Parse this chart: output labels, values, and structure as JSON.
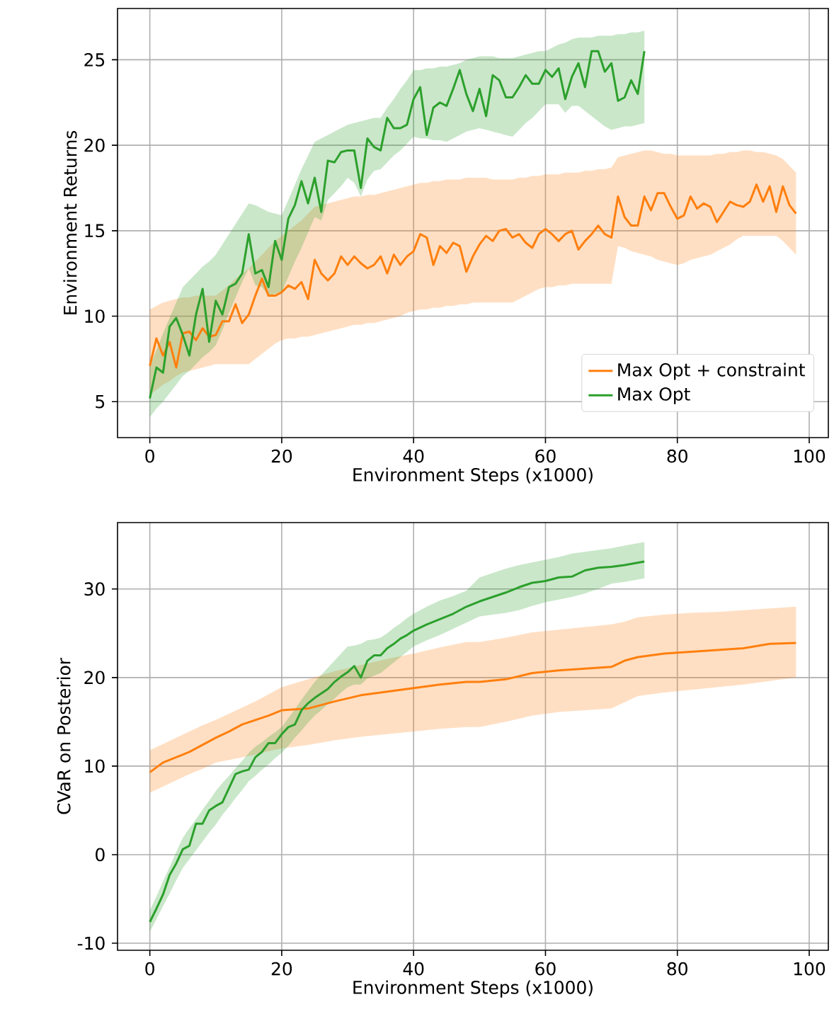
{
  "chart_data": [
    {
      "type": "line",
      "xlabel": "Environment Steps (x1000)",
      "ylabel": "Environment Returns",
      "xlim": [
        -4.9,
        102.9
      ],
      "ylim": [
        2.9,
        28
      ],
      "xticks": [
        0,
        20,
        40,
        60,
        80,
        100
      ],
      "yticks": [
        5,
        10,
        15,
        20,
        25
      ],
      "grid": true,
      "legend": "bottom right",
      "series": [
        {
          "name": "Max Opt + constraint",
          "color": "#ff7f0e",
          "x": [
            0,
            1,
            2,
            3,
            4,
            5,
            6,
            7,
            8,
            9,
            10,
            11,
            12,
            13,
            14,
            15,
            16,
            17,
            18,
            19,
            20,
            21,
            22,
            23,
            24,
            25,
            26,
            27,
            28,
            29,
            30,
            31,
            32,
            33,
            34,
            35,
            36,
            37,
            38,
            39,
            40,
            41,
            42,
            43,
            44,
            45,
            46,
            47,
            48,
            49,
            50,
            51,
            52,
            53,
            54,
            55,
            56,
            57,
            58,
            59,
            60,
            61,
            62,
            63,
            64,
            65,
            66,
            67,
            68,
            69,
            70,
            71,
            72,
            73,
            74,
            75,
            76,
            77,
            78,
            79,
            80,
            81,
            82,
            83,
            84,
            85,
            86,
            87,
            88,
            89,
            90,
            91,
            92,
            93,
            94,
            95,
            96,
            97,
            98
          ],
          "values": [
            7.1,
            8.7,
            7.7,
            8.5,
            7.0,
            9.0,
            9.1,
            8.6,
            9.3,
            8.8,
            8.9,
            9.7,
            9.7,
            10.7,
            9.6,
            10.1,
            11.2,
            12.2,
            11.2,
            11.2,
            11.4,
            11.8,
            11.6,
            12.0,
            11.0,
            13.3,
            12.5,
            12.1,
            12.5,
            13.5,
            13.0,
            13.5,
            13.1,
            12.8,
            13.0,
            13.5,
            12.5,
            13.6,
            13.0,
            13.5,
            13.8,
            14.8,
            14.6,
            13.0,
            14.1,
            13.7,
            14.3,
            14.1,
            12.6,
            13.5,
            14.2,
            14.7,
            14.4,
            15.0,
            15.1,
            14.6,
            14.8,
            14.3,
            14.0,
            14.8,
            15.1,
            14.8,
            14.4,
            14.8,
            15.0,
            13.9,
            14.4,
            14.8,
            15.3,
            14.8,
            14.6,
            17.0,
            15.8,
            15.3,
            15.3,
            17.0,
            16.2,
            17.2,
            17.2,
            16.4,
            15.7,
            15.9,
            17.0,
            16.3,
            16.6,
            16.4,
            15.5,
            16.1,
            16.7,
            16.5,
            16.4,
            16.7,
            17.7,
            16.7,
            17.6,
            16.1,
            17.6,
            16.5,
            16.0
          ],
          "upper": [
            10.4,
            10.6,
            10.8,
            10.9,
            11.0,
            11.1,
            11.1,
            11.2,
            11.2,
            11.2,
            11.2,
            11.5,
            11.8,
            12.2,
            12.5,
            12.8,
            13.2,
            13.6,
            14.0,
            14.4,
            14.7,
            15.0,
            15.3,
            15.6,
            16.0,
            16.4,
            16.5,
            16.6,
            16.7,
            16.8,
            16.9,
            17.0,
            17.0,
            17.1,
            17.1,
            17.2,
            17.3,
            17.4,
            17.5,
            17.6,
            17.7,
            17.8,
            17.8,
            17.9,
            17.9,
            18.0,
            18.0,
            18.0,
            18.1,
            18.1,
            18.1,
            18.1,
            18.0,
            18.0,
            18.0,
            18.0,
            18.1,
            18.1,
            18.2,
            18.2,
            18.3,
            18.3,
            18.3,
            18.4,
            18.4,
            18.4,
            18.5,
            18.5,
            18.6,
            18.6,
            18.7,
            19.3,
            19.4,
            19.5,
            19.6,
            19.7,
            19.7,
            19.6,
            19.5,
            19.5,
            19.4,
            19.4,
            19.4,
            19.4,
            19.4,
            19.4,
            19.5,
            19.5,
            19.6,
            19.6,
            19.7,
            19.7,
            19.6,
            19.6,
            19.5,
            19.4,
            19.2,
            18.8,
            18.4
          ],
          "lower": [
            5.4,
            5.7,
            6.0,
            6.2,
            6.5,
            6.7,
            6.8,
            6.9,
            7.0,
            7.1,
            7.2,
            7.2,
            7.2,
            7.2,
            7.2,
            7.2,
            7.5,
            7.8,
            8.1,
            8.4,
            8.6,
            8.7,
            8.7,
            8.8,
            8.8,
            8.9,
            9.0,
            9.1,
            9.2,
            9.3,
            9.4,
            9.5,
            9.5,
            9.6,
            9.6,
            9.7,
            9.8,
            9.9,
            10.0,
            10.2,
            10.3,
            10.4,
            10.4,
            10.5,
            10.5,
            10.6,
            10.6,
            10.7,
            10.7,
            10.8,
            10.8,
            10.8,
            10.8,
            10.8,
            10.8,
            10.8,
            11.0,
            11.2,
            11.4,
            11.6,
            11.7,
            11.7,
            11.8,
            11.8,
            11.9,
            11.9,
            11.9,
            11.9,
            11.9,
            11.9,
            11.9,
            14.1,
            14.0,
            13.8,
            13.7,
            13.6,
            13.5,
            13.3,
            13.2,
            13.1,
            13.0,
            13.1,
            13.3,
            13.4,
            13.5,
            13.6,
            13.8,
            14.0,
            14.2,
            14.5,
            14.7,
            14.7,
            14.7,
            14.7,
            14.7,
            14.7,
            14.4,
            14.0,
            13.6
          ]
        },
        {
          "name": "Max Opt",
          "color": "#2ca02c",
          "x": [
            0,
            1,
            2,
            3,
            4,
            5,
            6,
            7,
            8,
            9,
            10,
            11,
            12,
            13,
            14,
            15,
            16,
            17,
            18,
            19,
            20,
            21,
            22,
            23,
            24,
            25,
            26,
            27,
            28,
            29,
            30,
            31,
            32,
            33,
            34,
            35,
            36,
            37,
            38,
            39,
            40,
            41,
            42,
            43,
            44,
            45,
            46,
            47,
            48,
            49,
            50,
            51,
            52,
            53,
            54,
            55,
            56,
            57,
            58,
            59,
            60,
            61,
            62,
            63,
            64,
            65,
            66,
            67,
            68,
            69,
            70,
            71,
            72,
            73,
            74,
            75
          ],
          "values": [
            5.2,
            7.0,
            6.7,
            9.4,
            9.9,
            8.9,
            7.7,
            10.1,
            11.6,
            8.5,
            10.9,
            10.1,
            11.7,
            11.9,
            12.5,
            14.8,
            12.5,
            12.7,
            11.7,
            14.4,
            13.3,
            15.7,
            16.5,
            17.9,
            16.6,
            18.1,
            16.1,
            19.1,
            19.0,
            19.6,
            19.7,
            19.7,
            17.5,
            20.4,
            19.9,
            19.7,
            21.6,
            21.0,
            21.0,
            21.2,
            22.7,
            23.4,
            20.6,
            22.2,
            22.5,
            22.3,
            23.3,
            24.4,
            23.0,
            22.0,
            23.3,
            21.7,
            24.1,
            23.8,
            22.8,
            22.8,
            23.4,
            24.1,
            23.6,
            23.6,
            24.4,
            24.0,
            24.5,
            22.7,
            24.0,
            24.8,
            23.4,
            25.5,
            25.5,
            24.3,
            24.8,
            22.6,
            22.8,
            23.8,
            23.0,
            25.5
          ],
          "upper": [
            7.1,
            8.0,
            9.0,
            9.9,
            10.8,
            11.7,
            12.1,
            12.5,
            12.9,
            13.2,
            13.6,
            14.2,
            14.8,
            15.4,
            16.0,
            16.6,
            16.5,
            16.3,
            16.1,
            16.0,
            15.9,
            16.8,
            17.7,
            18.6,
            19.4,
            20.2,
            20.4,
            20.6,
            20.8,
            21.0,
            21.2,
            21.3,
            21.4,
            21.5,
            21.6,
            21.6,
            22.2,
            22.7,
            23.3,
            23.8,
            24.4,
            24.4,
            24.5,
            24.5,
            24.6,
            24.6,
            24.7,
            24.8,
            25.0,
            25.1,
            25.2,
            25.2,
            25.2,
            25.1,
            25.1,
            25.1,
            25.2,
            25.3,
            25.4,
            25.5,
            25.5,
            25.7,
            25.9,
            26.0,
            26.2,
            26.3,
            26.3,
            26.3,
            26.4,
            26.4,
            26.4,
            26.5,
            26.5,
            26.6,
            26.6,
            26.7
          ],
          "lower": [
            4.1,
            4.6,
            5.0,
            5.5,
            6.0,
            6.5,
            6.8,
            7.2,
            7.6,
            7.9,
            8.3,
            9.2,
            10.2,
            11.1,
            12.0,
            12.8,
            11.8,
            11.7,
            11.2,
            11.3,
            11.4,
            12.3,
            13.2,
            14.0,
            14.9,
            15.8,
            15.6,
            16.8,
            17.2,
            17.6,
            18.1,
            17.8,
            17.0,
            18.0,
            18.5,
            18.6,
            19.0,
            19.4,
            19.7,
            20.1,
            20.5,
            20.4,
            20.4,
            20.3,
            20.3,
            20.2,
            20.4,
            20.6,
            20.8,
            20.9,
            21.0,
            20.9,
            20.8,
            20.7,
            20.6,
            20.5,
            20.9,
            21.3,
            21.6,
            22.0,
            22.4,
            22.4,
            22.4,
            21.9,
            22.3,
            22.3,
            22.0,
            21.7,
            21.4,
            21.1,
            20.9,
            21.0,
            21.1,
            21.1,
            21.2,
            21.3
          ]
        }
      ]
    },
    {
      "type": "line",
      "xlabel": "Environment Steps (x1000)",
      "ylabel": "CVaR on Posterior",
      "xlim": [
        -4.9,
        102.9
      ],
      "ylim": [
        -10.8,
        37.5
      ],
      "xticks": [
        0,
        20,
        40,
        60,
        80,
        100
      ],
      "yticks": [
        -10,
        0,
        10,
        20,
        30
      ],
      "grid": true,
      "series": [
        {
          "color": "#ff7f0e",
          "x": [
            0,
            2,
            4,
            6,
            8,
            10,
            12,
            14,
            16,
            18,
            20,
            24,
            28,
            32,
            36,
            40,
            44,
            48,
            50,
            54,
            58,
            62,
            66,
            70,
            72,
            74,
            78,
            82,
            86,
            90,
            94,
            98
          ],
          "values": [
            9.3,
            10.4,
            11.0,
            11.6,
            12.4,
            13.2,
            13.9,
            14.7,
            15.2,
            15.7,
            16.3,
            16.5,
            17.3,
            18.0,
            18.4,
            18.8,
            19.2,
            19.5,
            19.5,
            19.8,
            20.5,
            20.8,
            21.0,
            21.2,
            21.9,
            22.3,
            22.7,
            22.9,
            23.1,
            23.3,
            23.8,
            23.9
          ],
          "upper": [
            11.8,
            12.5,
            13.2,
            13.9,
            14.6,
            15.2,
            15.9,
            16.6,
            17.3,
            18.1,
            18.9,
            19.8,
            20.7,
            21.4,
            22.1,
            22.7,
            23.4,
            24.0,
            24.0,
            24.5,
            25.1,
            25.4,
            25.7,
            26.0,
            26.3,
            26.8,
            27.1,
            27.3,
            27.4,
            27.6,
            27.8,
            28.0
          ],
          "lower": [
            7.0,
            7.7,
            8.4,
            9.1,
            9.7,
            10.4,
            10.7,
            11.0,
            11.3,
            11.7,
            12.0,
            12.4,
            12.9,
            13.3,
            13.6,
            13.9,
            14.2,
            14.4,
            14.4,
            15.0,
            15.7,
            16.1,
            16.3,
            16.5,
            17.2,
            17.9,
            18.3,
            18.6,
            18.9,
            19.2,
            19.6,
            20.0
          ]
        },
        {
          "color": "#2ca02c",
          "x": [
            0,
            1,
            2,
            3,
            4,
            5,
            6,
            7,
            8,
            9,
            10,
            11,
            12,
            13,
            14,
            15,
            16,
            17,
            18,
            19,
            20,
            21,
            22,
            23,
            24,
            25,
            26,
            27,
            28,
            29,
            30,
            31,
            32,
            33,
            34,
            35,
            36,
            37,
            38,
            39,
            40,
            42,
            44,
            46,
            48,
            50,
            52,
            54,
            56,
            58,
            60,
            62,
            64,
            66,
            68,
            70,
            72,
            75
          ],
          "values": [
            -7.6,
            -6.1,
            -4.5,
            -2.3,
            -1.0,
            0.6,
            1.0,
            3.5,
            3.5,
            5.0,
            5.5,
            5.9,
            7.5,
            9.1,
            9.4,
            9.6,
            11.0,
            11.6,
            12.6,
            12.6,
            13.6,
            14.4,
            14.7,
            16.3,
            17.1,
            17.7,
            18.2,
            18.7,
            19.5,
            20.1,
            20.6,
            21.3,
            20.0,
            21.9,
            22.5,
            22.5,
            23.3,
            23.8,
            24.4,
            24.8,
            25.3,
            26.0,
            26.6,
            27.2,
            28.0,
            28.6,
            29.1,
            29.6,
            30.2,
            30.7,
            30.9,
            31.3,
            31.4,
            32.1,
            32.4,
            32.5,
            32.7,
            33.1
          ],
          "upper": [
            -6.3,
            -4.7,
            -3.0,
            -1.4,
            0.3,
            1.9,
            3.0,
            4.0,
            5.1,
            6.1,
            7.2,
            8.1,
            8.9,
            9.8,
            10.6,
            11.5,
            12.2,
            12.7,
            13.3,
            13.8,
            14.4,
            15.4,
            16.4,
            17.5,
            18.5,
            19.5,
            20.3,
            21.1,
            21.9,
            22.7,
            23.5,
            23.6,
            23.8,
            24.2,
            24.3,
            24.5,
            25.0,
            25.6,
            26.1,
            26.7,
            27.2,
            28.0,
            28.7,
            29.2,
            29.8,
            31.3,
            31.8,
            32.3,
            32.7,
            33.0,
            33.3,
            33.6,
            34.0,
            34.2,
            34.4,
            34.6,
            34.9,
            35.3
          ],
          "lower": [
            -8.7,
            -7.3,
            -5.8,
            -4.4,
            -2.9,
            -1.5,
            -0.5,
            0.5,
            1.5,
            2.5,
            3.4,
            4.5,
            5.4,
            6.4,
            7.3,
            8.3,
            8.9,
            9.6,
            10.2,
            10.9,
            11.5,
            12.3,
            13.2,
            14.0,
            14.9,
            15.7,
            16.3,
            17.0,
            17.6,
            18.3,
            18.9,
            19.2,
            19.2,
            19.9,
            20.2,
            20.5,
            21.1,
            21.7,
            22.3,
            22.9,
            23.5,
            24.2,
            24.8,
            25.5,
            26.2,
            26.9,
            27.1,
            27.3,
            27.6,
            28.1,
            28.5,
            28.8,
            29.1,
            29.5,
            30.0,
            30.6,
            30.8,
            31.2
          ]
        }
      ]
    }
  ]
}
